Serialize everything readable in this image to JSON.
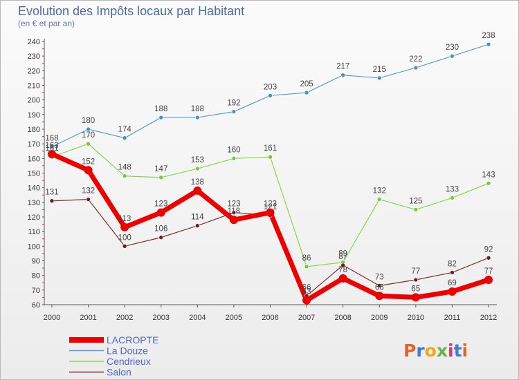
{
  "header": {
    "title": "Evolution des Impôts locaux par Habitant",
    "subtitle": "(en € et par an)"
  },
  "logo": {
    "text": "Proxiti",
    "letter_colors": [
      "#e2622b",
      "#3a7fd5",
      "#f0a81b",
      "#6cb33f",
      "#d9376b",
      "#3a7fd5",
      "#e2622b"
    ]
  },
  "chart_data": {
    "type": "line",
    "title": "Evolution des Impôts locaux par Habitant",
    "subtitle": "(en € et par an)",
    "xlabel": "",
    "ylabel": "",
    "x": [
      "2000",
      "2001",
      "2002",
      "2003",
      "2004",
      "2005",
      "2006",
      "2007",
      "2008",
      "2009",
      "2010",
      "2011",
      "2012"
    ],
    "ylim": [
      60,
      240
    ],
    "yticks": [
      60,
      70,
      80,
      90,
      100,
      110,
      120,
      130,
      140,
      150,
      160,
      170,
      180,
      190,
      200,
      210,
      220,
      230,
      240
    ],
    "grid": false,
    "legend_position": "bottom-left",
    "series": [
      {
        "name": "LACROPTE",
        "color": "#ee0000",
        "values": [
          163,
          152,
          113,
          123,
          138,
          118,
          123,
          63,
          78,
          66,
          65,
          69,
          77
        ]
      },
      {
        "name": "La Douze",
        "color": "#5b9bd5",
        "values": [
          168,
          180,
          174,
          188,
          188,
          192,
          203,
          205,
          217,
          215,
          222,
          230,
          238
        ]
      },
      {
        "name": "Cendrieux",
        "color": "#8bd34a",
        "values": [
          161,
          170,
          148,
          147,
          153,
          160,
          161,
          86,
          89,
          132,
          125,
          133,
          143
        ]
      },
      {
        "name": "Salon",
        "color": "#7a2e2e",
        "values": [
          131,
          132,
          100,
          106,
          114,
          123,
          121,
          66,
          87,
          73,
          77,
          82,
          92
        ]
      }
    ],
    "data_labels": {
      "LACROPTE": [
        "163",
        "152",
        "113",
        "123",
        "138",
        "118",
        "123",
        "63",
        "78",
        "66",
        "65",
        "69",
        "77"
      ],
      "La Douze": [
        "168",
        "180",
        "174",
        "188",
        "188",
        "192",
        "203",
        "205",
        "217",
        "215",
        "222",
        "230",
        "238"
      ],
      "Cendrieux": [
        "161",
        "170",
        "148",
        "147",
        "153",
        "160",
        "161",
        "86",
        "89",
        "132",
        "125",
        "133",
        "143"
      ],
      "Salon": [
        "131",
        "132",
        "100",
        "106",
        "114",
        "123",
        "121",
        "66",
        "87",
        "73",
        "77",
        "82",
        "92"
      ]
    }
  }
}
